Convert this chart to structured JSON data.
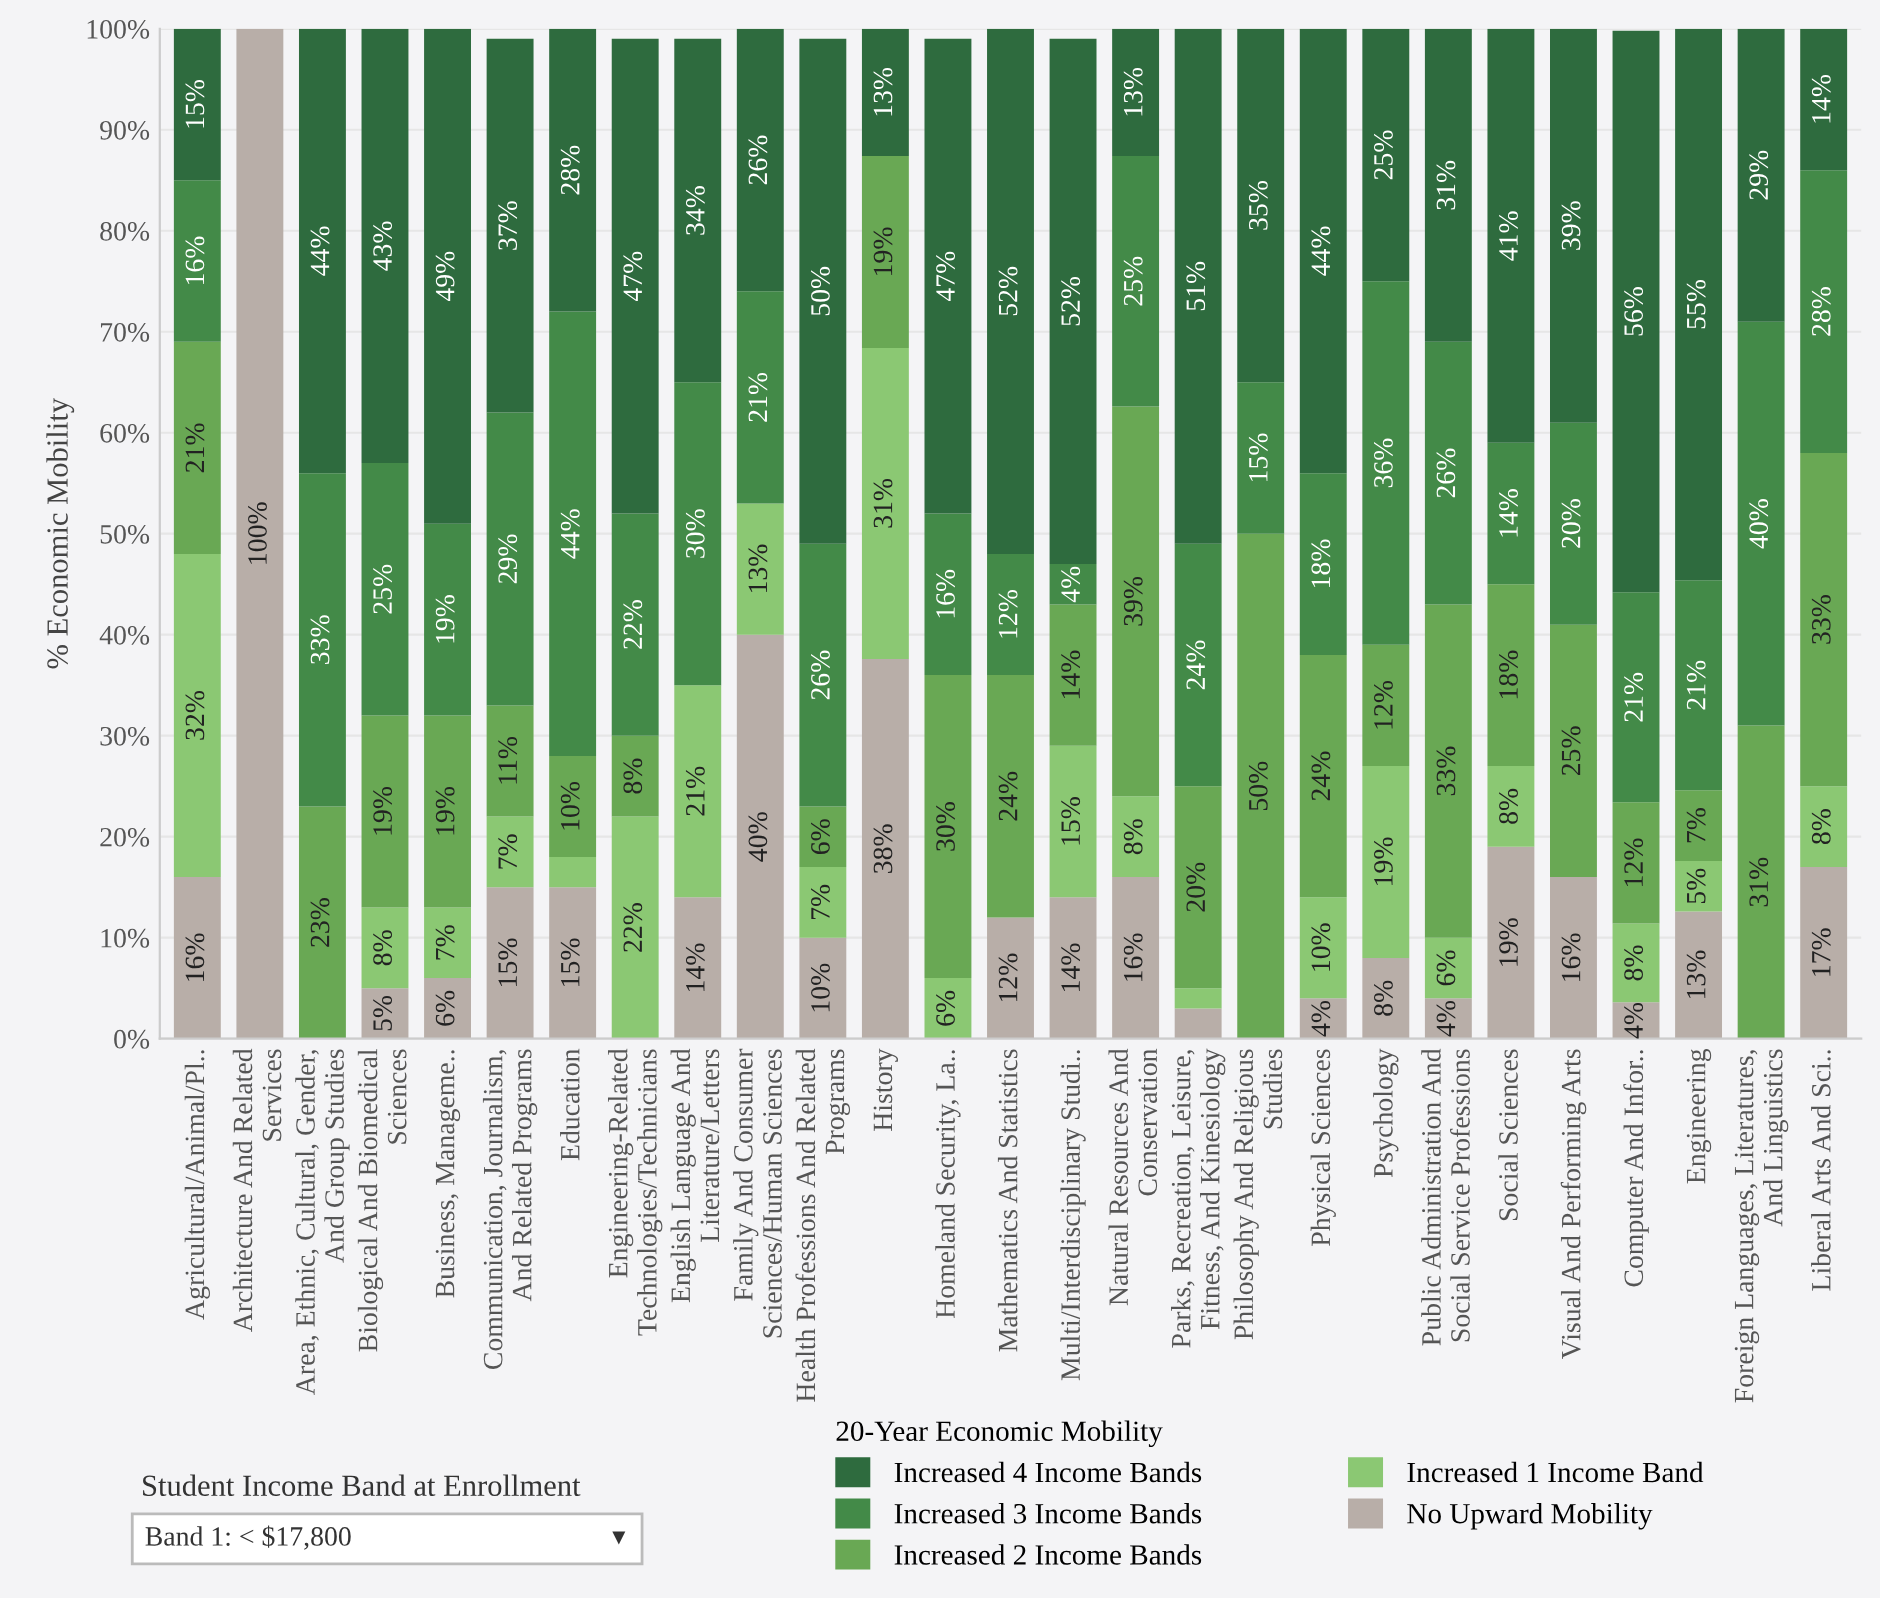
{
  "chart_data": {
    "type": "bar",
    "stacked": true,
    "ylabel": "% Economic Mobility",
    "legend_title": "20-Year Economic Mobility",
    "legend": "bottom",
    "grid": "y",
    "categories": [
      "Agricultural/Animal/Pl..",
      "Architecture And Related\nServices",
      "Area, Ethnic, Cultural, Gender,\nAnd Group Studies",
      "Biological And Biomedical\nSciences",
      "Business, Manageme..",
      "Communication, Journalism,\nAnd Related Programs",
      "Education",
      "Engineering-Related\nTechnologies/Technicians",
      "English Language And\nLiterature/Letters",
      "Family And Consumer\nSciences/Human Sciences",
      "Health Professions And Related\nPrograms",
      "History",
      "Homeland Security, La..",
      "Mathematics And Statistics",
      "Multi/Interdisciplinary Studi..",
      "Natural Resources And\nConservation",
      "Parks, Recreation, Leisure,\nFitness, And Kinesiology",
      "Philosophy And Religious\nStudies",
      "Physical Sciences",
      "Psychology",
      "Public Administration And\nSocial Service Professions",
      "Social Sciences",
      "Visual And Performing Arts",
      "Computer And Infor..",
      "Engineering",
      "Foreign Languages, Literatures,\nAnd Linguistics",
      "Liberal Arts And Sci.."
    ],
    "ylim": [
      0,
      100
    ],
    "yticks": [
      {
        "value": 0,
        "label": "0%"
      },
      {
        "value": 10,
        "label": "10%"
      },
      {
        "value": 20,
        "label": "20%"
      },
      {
        "value": 30,
        "label": "30%"
      },
      {
        "value": 40,
        "label": "40%"
      },
      {
        "value": 50,
        "label": "50%"
      },
      {
        "value": 60,
        "label": "60%"
      },
      {
        "value": 70,
        "label": "70%"
      },
      {
        "value": 80,
        "label": "80%"
      },
      {
        "value": 90,
        "label": "90%"
      },
      {
        "value": 100,
        "label": "100%"
      }
    ],
    "series": [
      {
        "name": "No Upward Mobility",
        "color": "#b8aea8",
        "values": [
          16,
          100,
          0,
          5,
          6,
          15,
          15,
          0,
          14,
          40,
          10,
          37.6,
          0,
          12,
          14,
          16,
          3,
          0,
          4,
          8,
          4,
          19,
          16,
          3.6,
          12.6,
          0,
          17
        ],
        "value_labels": [
          "16%",
          "100%",
          null,
          "5%",
          "6%",
          "15%",
          "15%",
          null,
          "14%",
          "40%",
          "10%",
          "38%",
          null,
          "12%",
          "14%",
          "16%",
          null,
          null,
          "4%",
          "8%",
          "4%",
          "19%",
          "16%",
          "4%",
          "13%",
          null,
          "17%"
        ]
      },
      {
        "name": "Increased 1 Income Band",
        "color": "#8bc873",
        "values": [
          32,
          0,
          0,
          8,
          7,
          7,
          3,
          22,
          21,
          13,
          7,
          30.8,
          6,
          0,
          15,
          8,
          2,
          0,
          10,
          19,
          6,
          8,
          0,
          7.8,
          5,
          0,
          8
        ],
        "value_labels": [
          "32%",
          null,
          null,
          "8%",
          "7%",
          "7%",
          null,
          "22%",
          "21%",
          "13%",
          "7%",
          "31%",
          "6%",
          null,
          "15%",
          "8%",
          null,
          null,
          "10%",
          "19%",
          "6%",
          "8%",
          null,
          "8%",
          "5%",
          null,
          "8%"
        ]
      },
      {
        "name": "Increased 2 Income Bands",
        "color": "#69a854",
        "values": [
          21,
          0,
          23,
          19,
          19,
          11,
          10,
          8,
          0,
          0,
          6,
          19,
          30,
          24,
          14,
          38.6,
          20,
          50,
          24,
          12,
          33,
          18,
          25,
          12,
          7,
          31,
          33
        ],
        "value_labels": [
          "21%",
          null,
          "23%",
          "19%",
          "19%",
          "11%",
          "10%",
          "8%",
          null,
          null,
          "6%",
          "19%",
          "30%",
          "24%",
          "14%",
          "39%",
          "20%",
          "50%",
          "24%",
          "12%",
          "33%",
          "18%",
          "25%",
          "12%",
          "7%",
          "31%",
          "33%"
        ]
      },
      {
        "name": "Increased 3 Income Bands",
        "color": "#438a48",
        "values": [
          16,
          0,
          33,
          25,
          19,
          29,
          44,
          22,
          30,
          21,
          26,
          0,
          16,
          12,
          4,
          24.8,
          24,
          15,
          18,
          36,
          26,
          14,
          20,
          20.8,
          20.8,
          40,
          28
        ],
        "value_labels": [
          "16%",
          null,
          "33%",
          "25%",
          "19%",
          "29%",
          "44%",
          "22%",
          "30%",
          "21%",
          "26%",
          null,
          "16%",
          "12%",
          "4%",
          "25%",
          "24%",
          "15%",
          "18%",
          "36%",
          "26%",
          "14%",
          "20%",
          "21%",
          "21%",
          "40%",
          "28%"
        ]
      },
      {
        "name": "Increased 4 Income Bands",
        "color": "#2e6b3e",
        "values": [
          15,
          0,
          44,
          43,
          49,
          37,
          28,
          47,
          34,
          26,
          50,
          12.6,
          47,
          52,
          52,
          12.6,
          51,
          35,
          44,
          25,
          31,
          41,
          39,
          55.6,
          54.6,
          29,
          14
        ],
        "value_labels": [
          "15%",
          null,
          "44%",
          "43%",
          "49%",
          "37%",
          "28%",
          "47%",
          "34%",
          "26%",
          "50%",
          "13%",
          "47%",
          "52%",
          "52%",
          "13%",
          "51%",
          "35%",
          "44%",
          "25%",
          "31%",
          "41%",
          "39%",
          "56%",
          "55%",
          "29%",
          "14%"
        ]
      }
    ],
    "annotations": [
      "Student Income Band at Enrollment",
      "Band 1: < $17,800",
      "▼"
    ]
  }
}
